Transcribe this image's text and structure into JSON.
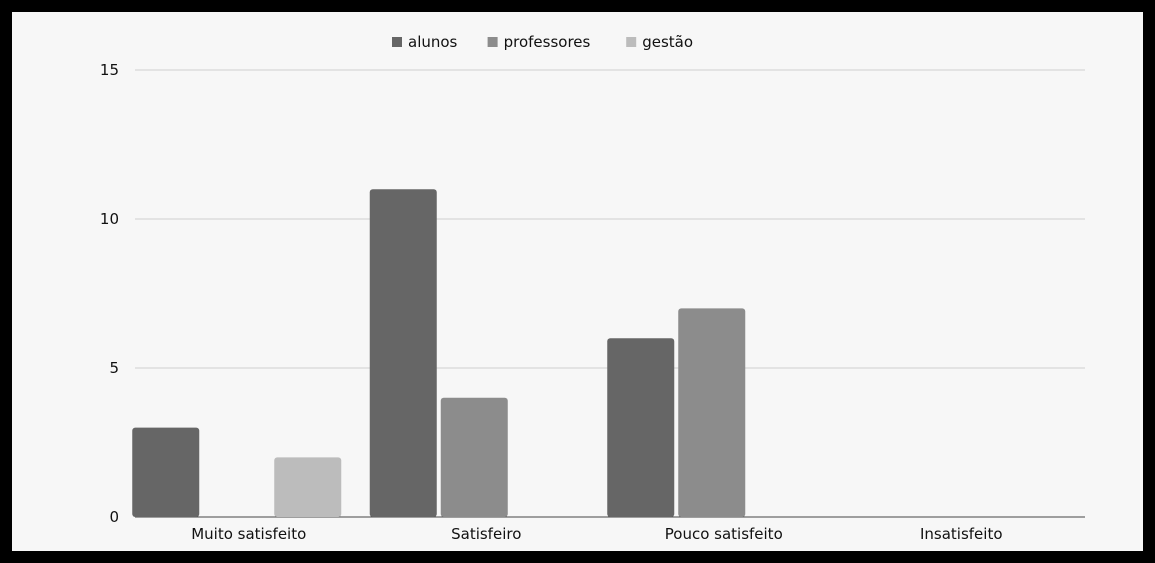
{
  "chart_data": {
    "type": "bar",
    "title": "",
    "xlabel": "",
    "ylabel": "",
    "categories": [
      "Muito satisfeito",
      "Satisfeiro",
      "Pouco satisfeito",
      "Insatisfeito"
    ],
    "series": [
      {
        "name": "alunos",
        "color": "#666666",
        "values": [
          3,
          11,
          6,
          0
        ]
      },
      {
        "name": "professores",
        "color": "#8c8c8c",
        "values": [
          0,
          4,
          7,
          0
        ]
      },
      {
        "name": "gestão",
        "color": "#bcbcbc",
        "values": [
          2,
          0,
          0,
          0
        ]
      }
    ],
    "ylim": [
      0,
      15
    ],
    "yticks": [
      "0",
      "5",
      "10",
      "15"
    ],
    "grid": true,
    "legend": "top-center"
  }
}
